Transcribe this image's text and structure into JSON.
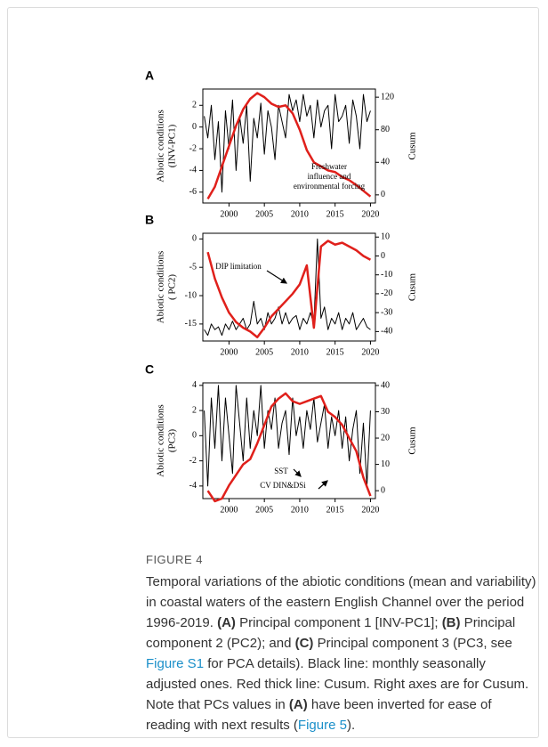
{
  "chart_data": [
    {
      "type": "line",
      "panel": "A",
      "ylabel": [
        "Abiotic conditions",
        "(INV-PC1)"
      ],
      "y2label": "Cusum",
      "xlim": [
        1996.3,
        2020.7
      ],
      "xticks": [
        2000,
        2005,
        2010,
        2015,
        2020
      ],
      "ylim": [
        -7,
        3.5
      ],
      "yticks": [
        2,
        0,
        -2,
        -4,
        -6
      ],
      "y2lim": [
        -10,
        130
      ],
      "y2ticks": [
        120,
        80,
        40,
        0
      ],
      "annotations": [
        [
          "Freshwater",
          "influence and",
          "environmental forcing"
        ]
      ],
      "series": [
        {
          "color": "#000000",
          "x": [
            1996.5,
            1997,
            1997.5,
            1998,
            1998.5,
            1999,
            1999.5,
            2000,
            2000.5,
            2001,
            2001.5,
            2002,
            2002.5,
            2003,
            2003.5,
            2004,
            2004.5,
            2005,
            2005.5,
            2006,
            2006.5,
            2007,
            2007.5,
            2008,
            2008.5,
            2009,
            2009.5,
            2010,
            2010.5,
            2011,
            2011.5,
            2012,
            2012.5,
            2013,
            2013.5,
            2014,
            2014.5,
            2015,
            2015.5,
            2016,
            2016.5,
            2017,
            2017.5,
            2018,
            2018.5,
            2019,
            2019.5,
            2020
          ],
          "values": [
            1,
            -1,
            2,
            -3,
            0.5,
            -6,
            1.5,
            -2,
            2.5,
            -4,
            1,
            -1.5,
            2,
            -5,
            0.8,
            -1,
            2.2,
            -2.5,
            1.5,
            0,
            -3,
            2,
            0.5,
            -1,
            3,
            1.5,
            2.5,
            0.5,
            3,
            1,
            2,
            -1,
            2.5,
            0,
            1.5,
            2,
            -2,
            3,
            0.5,
            1,
            2,
            -1.5,
            2.5,
            1,
            -2,
            3,
            0.5,
            1.5
          ]
        },
        {
          "color": "#e0201b",
          "axis": "y2",
          "x": [
            1997,
            1998,
            1999,
            2000,
            2001,
            2002,
            2003,
            2004,
            2005,
            2006,
            2007,
            2008,
            2009,
            2010,
            2011,
            2012,
            2013,
            2014,
            2015,
            2016,
            2017,
            2018,
            2019,
            2020
          ],
          "values": [
            -5,
            10,
            35,
            60,
            85,
            105,
            118,
            125,
            120,
            112,
            108,
            110,
            100,
            80,
            55,
            40,
            35,
            30,
            28,
            22,
            18,
            12,
            5,
            -2
          ]
        }
      ]
    },
    {
      "type": "line",
      "panel": "B",
      "ylabel": [
        "Abiotic conditions",
        "( PC2)"
      ],
      "y2label": "Cusum",
      "xlim": [
        1996.3,
        2020.7
      ],
      "xticks": [
        2000,
        2005,
        2010,
        2015,
        2020
      ],
      "ylim": [
        -18,
        1
      ],
      "yticks": [
        0,
        -5,
        -10,
        -15
      ],
      "y2lim": [
        -45,
        12
      ],
      "y2ticks": [
        10,
        0,
        -10,
        -20,
        -30,
        -40
      ],
      "annotations": [
        [
          "DIP limitation"
        ]
      ],
      "series": [
        {
          "color": "#000000",
          "x": [
            1996.5,
            1997,
            1997.5,
            1998,
            1998.5,
            1999,
            1999.5,
            2000,
            2000.5,
            2001,
            2001.5,
            2002,
            2002.5,
            2003,
            2003.5,
            2004,
            2004.5,
            2005,
            2005.5,
            2006,
            2006.5,
            2007,
            2007.5,
            2008,
            2008.5,
            2009,
            2009.5,
            2010,
            2010.5,
            2011,
            2011.5,
            2012,
            2012.5,
            2013,
            2013.5,
            2014,
            2014.5,
            2015,
            2015.5,
            2016,
            2016.5,
            2017,
            2017.5,
            2018,
            2018.5,
            2019,
            2019.5,
            2020
          ],
          "values": [
            -16,
            -17,
            -15,
            -16,
            -15.5,
            -17,
            -15,
            -16,
            -14.5,
            -16,
            -15,
            -14,
            -16,
            -15,
            -11,
            -15,
            -14,
            -16,
            -13,
            -15,
            -14,
            -12,
            -15,
            -13,
            -15,
            -14,
            -13.5,
            -16,
            -14,
            -15,
            -13,
            -15,
            0,
            -14,
            -12,
            -16,
            -14,
            -15,
            -13,
            -16,
            -14,
            -15,
            -13,
            -16,
            -15,
            -14,
            -15.5,
            -16
          ]
        },
        {
          "color": "#e0201b",
          "axis": "y2",
          "x": [
            1997,
            1998,
            1999,
            2000,
            2001,
            2002,
            2003,
            2004,
            2005,
            2006,
            2007,
            2008,
            2009,
            2010,
            2011,
            2012,
            2013,
            2014,
            2015,
            2016,
            2017,
            2018,
            2019,
            2020
          ],
          "values": [
            2,
            -12,
            -22,
            -30,
            -35,
            -38,
            -40,
            -43,
            -38,
            -32,
            -28,
            -24,
            -20,
            -15,
            -5,
            -38,
            5,
            8,
            6,
            7,
            5,
            3,
            0,
            -2
          ]
        }
      ]
    },
    {
      "type": "line",
      "panel": "C",
      "ylabel": [
        "Abiotic conditions",
        "(PC3)"
      ],
      "y2label": "Cusum",
      "xlim": [
        1996.3,
        2020.7
      ],
      "xticks": [
        2000,
        2005,
        2010,
        2015,
        2020
      ],
      "ylim": [
        -5,
        4.2
      ],
      "yticks": [
        4,
        2,
        0,
        -2,
        -4
      ],
      "y2lim": [
        -3,
        41
      ],
      "y2ticks": [
        40,
        30,
        20,
        10,
        0
      ],
      "annotations": [
        [
          "SST"
        ],
        [
          "CV DIN&DSi"
        ]
      ],
      "series": [
        {
          "color": "#000000",
          "x": [
            1996.5,
            1997,
            1997.5,
            1998,
            1998.5,
            1999,
            1999.5,
            2000,
            2000.5,
            2001,
            2001.5,
            2002,
            2002.5,
            2003,
            2003.5,
            2004,
            2004.5,
            2005,
            2005.5,
            2006,
            2006.5,
            2007,
            2007.5,
            2008,
            2008.5,
            2009,
            2009.5,
            2010,
            2010.5,
            2011,
            2011.5,
            2012,
            2012.5,
            2013,
            2013.5,
            2014,
            2014.5,
            2015,
            2015.5,
            2016,
            2016.5,
            2017,
            2017.5,
            2018,
            2018.5,
            2019,
            2019.5,
            2020
          ],
          "values": [
            2,
            -4,
            3,
            -1,
            4,
            -2,
            3,
            0,
            -3,
            4,
            1,
            -2,
            3,
            -1,
            2,
            0,
            4,
            -1,
            2,
            0.5,
            3,
            -1,
            1,
            2,
            -1.5,
            3,
            0,
            1.5,
            -1,
            2,
            0.5,
            3,
            -0.5,
            1,
            2.5,
            -1,
            1.5,
            0,
            2,
            -1,
            1.5,
            -2,
            0.5,
            2,
            -3,
            1,
            -4,
            2
          ]
        },
        {
          "color": "#e0201b",
          "axis": "y2",
          "x": [
            1997,
            1998,
            1999,
            2000,
            2001,
            2002,
            2003,
            2004,
            2005,
            2006,
            2007,
            2008,
            2009,
            2010,
            2011,
            2012,
            2013,
            2014,
            2015,
            2016,
            2017,
            2018,
            2019,
            2020
          ],
          "values": [
            0,
            -4,
            -3,
            2,
            6,
            10,
            12,
            18,
            25,
            32,
            35,
            37,
            34,
            33,
            34,
            35,
            36,
            30,
            28,
            25,
            20,
            15,
            5,
            -2
          ]
        }
      ]
    }
  ],
  "figure_label": "FIGURE 4",
  "caption": [
    {
      "text": "Temporal variations of the abiotic conditions (mean and variability) in coastal waters of the eastern English Channel over the period 1996-2019. "
    },
    {
      "text": "(A)",
      "bold": true
    },
    {
      "text": " Principal component 1 [INV-PC1]; "
    },
    {
      "text": "(B)",
      "bold": true
    },
    {
      "text": " Principal component 2 (PC2); and "
    },
    {
      "text": "(C)",
      "bold": true
    },
    {
      "text": " Principal component 3 (PC3, see "
    },
    {
      "text": "Figure S1",
      "link": true
    },
    {
      "text": " for PCA details). Black line: monthly seasonally adjusted ones. Red thick line: Cusum. Right axes are for Cusum. Note that PCs values in "
    },
    {
      "text": "(A)",
      "bold": true
    },
    {
      "text": " have been inverted for ease of reading with next results ("
    },
    {
      "text": "Figure 5",
      "link": true
    },
    {
      "text": ")."
    }
  ]
}
